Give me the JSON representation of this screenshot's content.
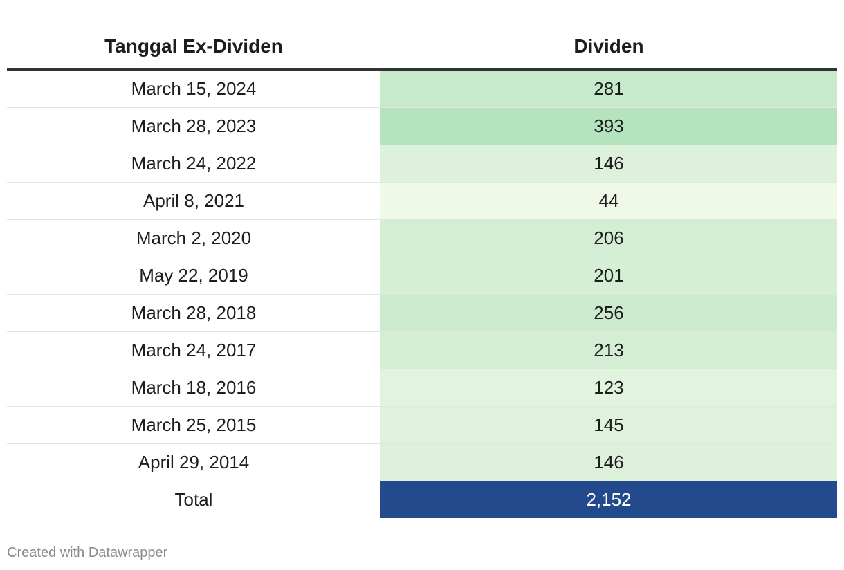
{
  "chart_data": {
    "type": "table",
    "columns": [
      "Tanggal Ex-Dividen",
      "Dividen"
    ],
    "rows": [
      {
        "date": "March 15, 2024",
        "dividend": 281,
        "dividend_label": "281"
      },
      {
        "date": "March 28, 2023",
        "dividend": 393,
        "dividend_label": "393"
      },
      {
        "date": "March 24, 2022",
        "dividend": 146,
        "dividend_label": "146"
      },
      {
        "date": "April 8, 2021",
        "dividend": 44,
        "dividend_label": "44"
      },
      {
        "date": "March 2, 2020",
        "dividend": 206,
        "dividend_label": "206"
      },
      {
        "date": "May 22, 2019",
        "dividend": 201,
        "dividend_label": "201"
      },
      {
        "date": "March 28, 2018",
        "dividend": 256,
        "dividend_label": "256"
      },
      {
        "date": "March 24, 2017",
        "dividend": 213,
        "dividend_label": "213"
      },
      {
        "date": "March 18, 2016",
        "dividend": 123,
        "dividend_label": "123"
      },
      {
        "date": "March 25, 2015",
        "dividend": 145,
        "dividend_label": "145"
      },
      {
        "date": "April 29, 2014",
        "dividend": 146,
        "dividend_label": "146"
      }
    ],
    "total": {
      "label": "Total",
      "value": 2152,
      "value_label": "2,152"
    },
    "colors": {
      "scale_low": "#f0f8e8",
      "scale_high": "#b4e3bd",
      "total_fill": "#234a8c"
    }
  },
  "footer": {
    "credit": "Created with Datawrapper"
  }
}
